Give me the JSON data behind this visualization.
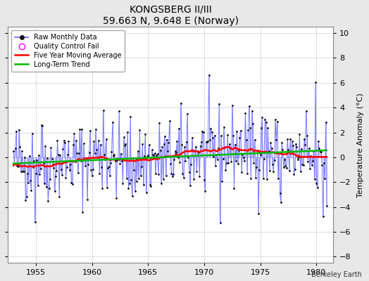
{
  "title": "KONGSBERG II/III",
  "subtitle": "59.663 N, 9.648 E (Norway)",
  "ylabel": "Temperature Anomaly (°C)",
  "attribution": "Berkeley Earth",
  "xlim": [
    1952.5,
    1981.5
  ],
  "ylim": [
    -8.5,
    10.5
  ],
  "yticks": [
    -8,
    -6,
    -4,
    -2,
    0,
    2,
    4,
    6,
    8,
    10
  ],
  "xticks": [
    1955,
    1960,
    1965,
    1970,
    1975,
    1980
  ],
  "grid_color": "#d0d0d0",
  "bg_color": "#e8e8e8",
  "plot_bg": "#ffffff",
  "raw_line_color": "#6666ff",
  "raw_dot_color": "#111111",
  "ma_color": "#ff0000",
  "trend_color": "#00bb00",
  "qc_color": "#ff00ff",
  "seed": 42,
  "n_months": 336,
  "start_year": 1953.0
}
